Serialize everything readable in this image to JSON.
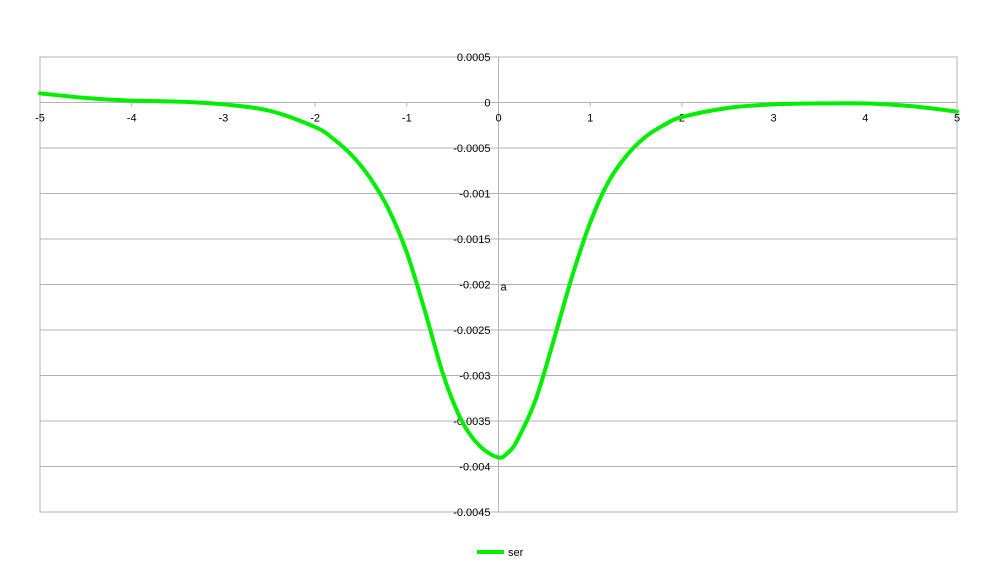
{
  "chart_data": {
    "type": "line",
    "title": "",
    "xlabel": "",
    "ylabel": "a",
    "xlim": [
      -5,
      5
    ],
    "ylim": [
      -0.0045,
      0.0005
    ],
    "x_ticks": [
      -5,
      -4,
      -3,
      -2,
      -1,
      0,
      1,
      2,
      3,
      4,
      5
    ],
    "x_tick_labels": [
      "-5",
      "-4",
      "-3",
      "-2",
      "-1",
      "0",
      "1",
      "2",
      "3",
      "4",
      "5"
    ],
    "y_ticks": [
      0.0005,
      0,
      -0.0005,
      -0.001,
      -0.0015,
      -0.002,
      -0.0025,
      -0.003,
      -0.0035,
      -0.004,
      -0.0045
    ],
    "y_tick_labels": [
      "0.0005",
      "0",
      "-0.0005",
      "-0.001",
      "-0.0015",
      "-0.002",
      "-0.0025",
      "-0.003",
      "-0.0035",
      "-0.004",
      "-0.0045"
    ],
    "grid": "horizontal",
    "legend": "bottom",
    "series": [
      {
        "name": "ser",
        "color": "#00ee00",
        "x": [
          -5,
          -4.5,
          -4,
          -3.5,
          -3,
          -2.5,
          -2,
          -1.8,
          -1.6,
          -1.4,
          -1.2,
          -1,
          -0.8,
          -0.6,
          -0.4,
          -0.2,
          0,
          0.1,
          0.2,
          0.4,
          0.6,
          0.8,
          1,
          1.2,
          1.4,
          1.6,
          1.8,
          2,
          2.5,
          3,
          3.5,
          4,
          4.5,
          5
        ],
        "y": [
          0.0001,
          5e-05,
          2e-05,
          1e-05,
          -2e-05,
          -9e-05,
          -0.00027,
          -0.0004,
          -0.00058,
          -0.00083,
          -0.00117,
          -0.00165,
          -0.0023,
          -0.003,
          -0.0035,
          -0.00378,
          -0.0039,
          -0.00385,
          -0.00372,
          -0.00328,
          -0.00262,
          -0.00192,
          -0.00132,
          -0.00087,
          -0.00058,
          -0.00038,
          -0.00025,
          -0.00016,
          -6e-05,
          -2e-05,
          -1e-05,
          -1e-05,
          -4e-05,
          -0.0001
        ]
      }
    ]
  }
}
